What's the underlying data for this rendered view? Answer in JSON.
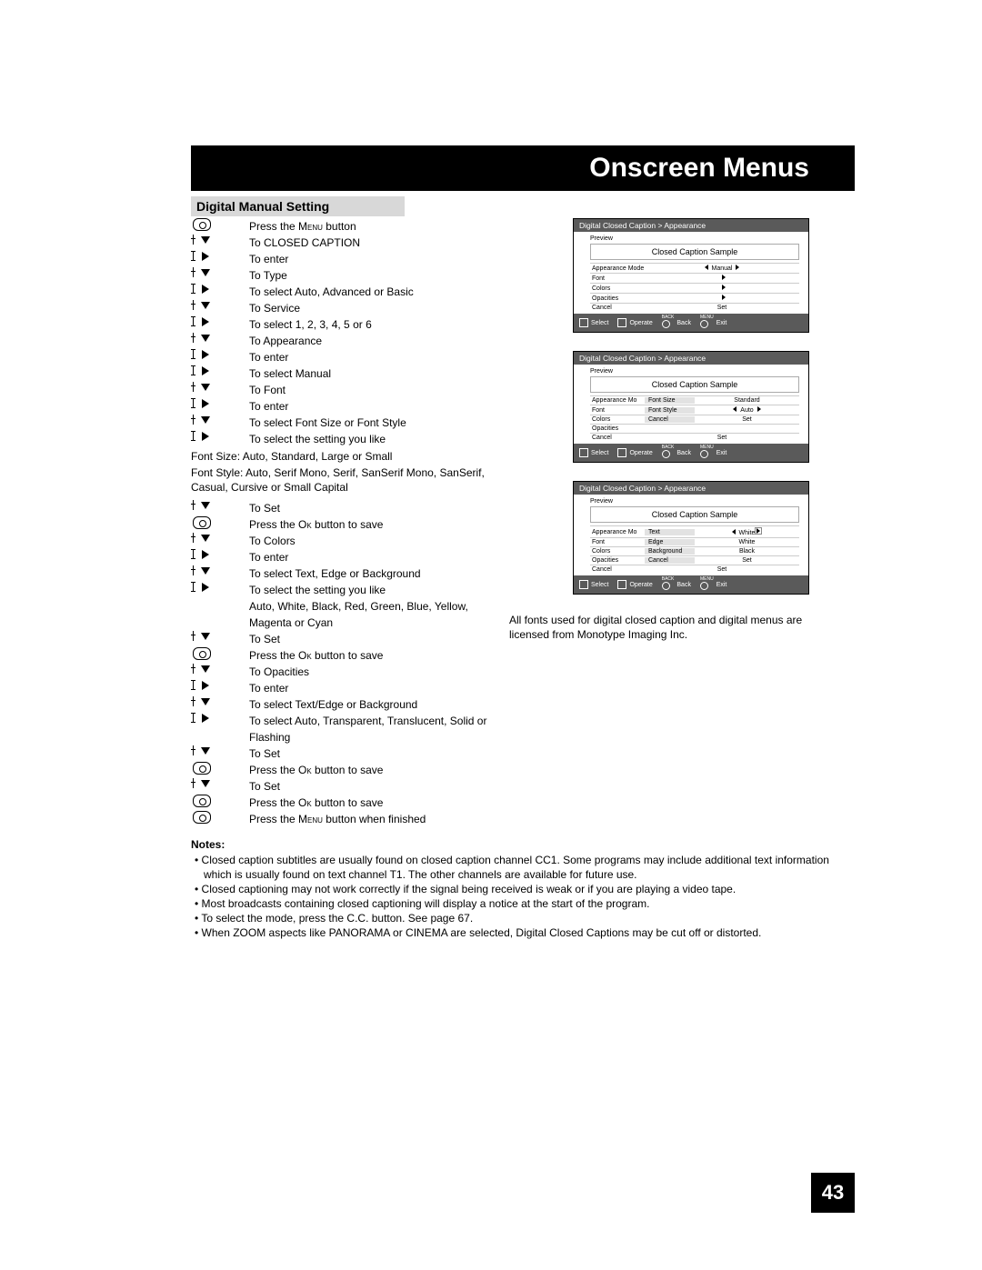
{
  "page": {
    "title": "Onscreen Menus",
    "subtitle": "Digital Manual Setting",
    "number": "43"
  },
  "steps": [
    {
      "cue": "btn",
      "text": "Press the <span class='sc'>Menu</span> button"
    },
    {
      "cue": "down",
      "text": "To CLOSED CAPTION"
    },
    {
      "cue": "right",
      "text": "To enter"
    },
    {
      "cue": "down",
      "text": "To Type"
    },
    {
      "cue": "right",
      "text": "To select Auto, Advanced or Basic"
    },
    {
      "cue": "down",
      "text": "To Service"
    },
    {
      "cue": "right",
      "text": "To select 1, 2, 3, 4, 5 or 6"
    },
    {
      "cue": "down",
      "text": "To Appearance"
    },
    {
      "cue": "right",
      "text": "To enter"
    },
    {
      "cue": "right",
      "text": "To select Manual"
    },
    {
      "cue": "down",
      "text": "To Font"
    },
    {
      "cue": "right",
      "text": "To enter"
    },
    {
      "cue": "down",
      "text": "To select Font Size or Font Style"
    },
    {
      "cue": "right",
      "text": "To select the setting you like"
    }
  ],
  "font_size_text": "Font Size: Auto, Standard, Large or Small",
  "font_style_text": "Font Style: Auto, Serif Mono, Serif, SanSerif Mono, SanSerif, Casual, Cursive or Small Capital",
  "steps2": [
    {
      "cue": "down",
      "text": "To Set"
    },
    {
      "cue": "btn",
      "text": "Press the <span class='sc'>Ok</span> button to save"
    },
    {
      "cue": "down",
      "text": "To Colors"
    },
    {
      "cue": "right",
      "text": "To enter"
    },
    {
      "cue": "down",
      "text": "To select Text, Edge or Background"
    },
    {
      "cue": "right",
      "text": "To select the setting you like"
    },
    {
      "cue": "blank",
      "text": "Auto, White, Black, Red, Green, Blue, Yellow, Magenta or Cyan"
    },
    {
      "cue": "down",
      "text": "To Set"
    },
    {
      "cue": "btn",
      "text": "Press the <span class='sc'>Ok</span> button to save"
    },
    {
      "cue": "down",
      "text": "To Opacities"
    },
    {
      "cue": "right",
      "text": "To enter"
    },
    {
      "cue": "down",
      "text": "To select Text/Edge or Background"
    },
    {
      "cue": "right",
      "text": "To select Auto, Transparent, Translucent, Solid or Flashing"
    },
    {
      "cue": "down",
      "text": "To Set"
    },
    {
      "cue": "btn",
      "text": "Press the <span class='sc'>Ok</span> button to save"
    },
    {
      "cue": "down",
      "text": "To Set"
    },
    {
      "cue": "btn",
      "text": "Press the <span class='sc'>Ok</span> button to save"
    },
    {
      "cue": "btn",
      "text": "Press the <span class='sc'>Menu</span> button when finished"
    }
  ],
  "osd": {
    "breadcrumb": "Digital Closed Caption  >  Appearance",
    "preview": "Preview",
    "sample": "Closed Caption Sample",
    "footer": {
      "select": "Select",
      "operate": "Operate",
      "back_sup": "BACK",
      "back": "Back",
      "menu_sup": "MENU",
      "exit": "Exit"
    }
  },
  "osd1_rows": [
    {
      "label": "Appearance Mode",
      "ltri": true,
      "val": "Manual",
      "rtri": true
    },
    {
      "label": "Font",
      "val": "",
      "rtri": true
    },
    {
      "label": "Colors",
      "val": "",
      "rtri": true
    },
    {
      "label": "Opacities",
      "val": "",
      "rtri": true
    },
    {
      "label": "Cancel",
      "val": "Set"
    }
  ],
  "osd2_rows": [
    {
      "label": "Appearance Mo",
      "sub": {
        "label": "Font Size",
        "val": "Standard"
      }
    },
    {
      "label": "Font",
      "sub": {
        "label": "Font Style",
        "ltri": true,
        "val": "Auto",
        "rtri": true
      }
    },
    {
      "label": "Colors",
      "sub": {
        "label": "Cancel",
        "val": "Set"
      }
    },
    {
      "label": "Opacities",
      "val": ""
    },
    {
      "label": "Cancel",
      "val": "Set"
    }
  ],
  "osd3_rows": [
    {
      "label": "Appearance Mo",
      "sub": {
        "label": "Text",
        "ltri": true,
        "val": "White",
        "rtrib": true
      }
    },
    {
      "label": "Font",
      "sub": {
        "label": "Edge",
        "val": "White"
      }
    },
    {
      "label": "Colors",
      "sub": {
        "label": "Background",
        "val": "Black"
      }
    },
    {
      "label": "Opacities",
      "sub": {
        "label": "Cancel",
        "val": "Set"
      }
    },
    {
      "label": "Cancel",
      "val": "Set"
    }
  ],
  "right_note": "All fonts used for digital closed caption and digital menus are licensed from Monotype Imaging Inc.",
  "notes_title": "Notes:",
  "notes": [
    "Closed caption subtitles are usually found on closed caption channel CC1. Some programs may include additional text information which is usually found on text channel T1. The other channels are available for future use.",
    "Closed captioning may not work correctly if the signal being received is weak or if you are playing a video tape.",
    "Most broadcasts containing closed captioning will display a notice at the start of the program.",
    "To select the mode, press the C.C. button. See page 67.",
    "When ZOOM aspects like PANORAMA or CINEMA are selected, Digital Closed Captions may be cut off or distorted."
  ]
}
